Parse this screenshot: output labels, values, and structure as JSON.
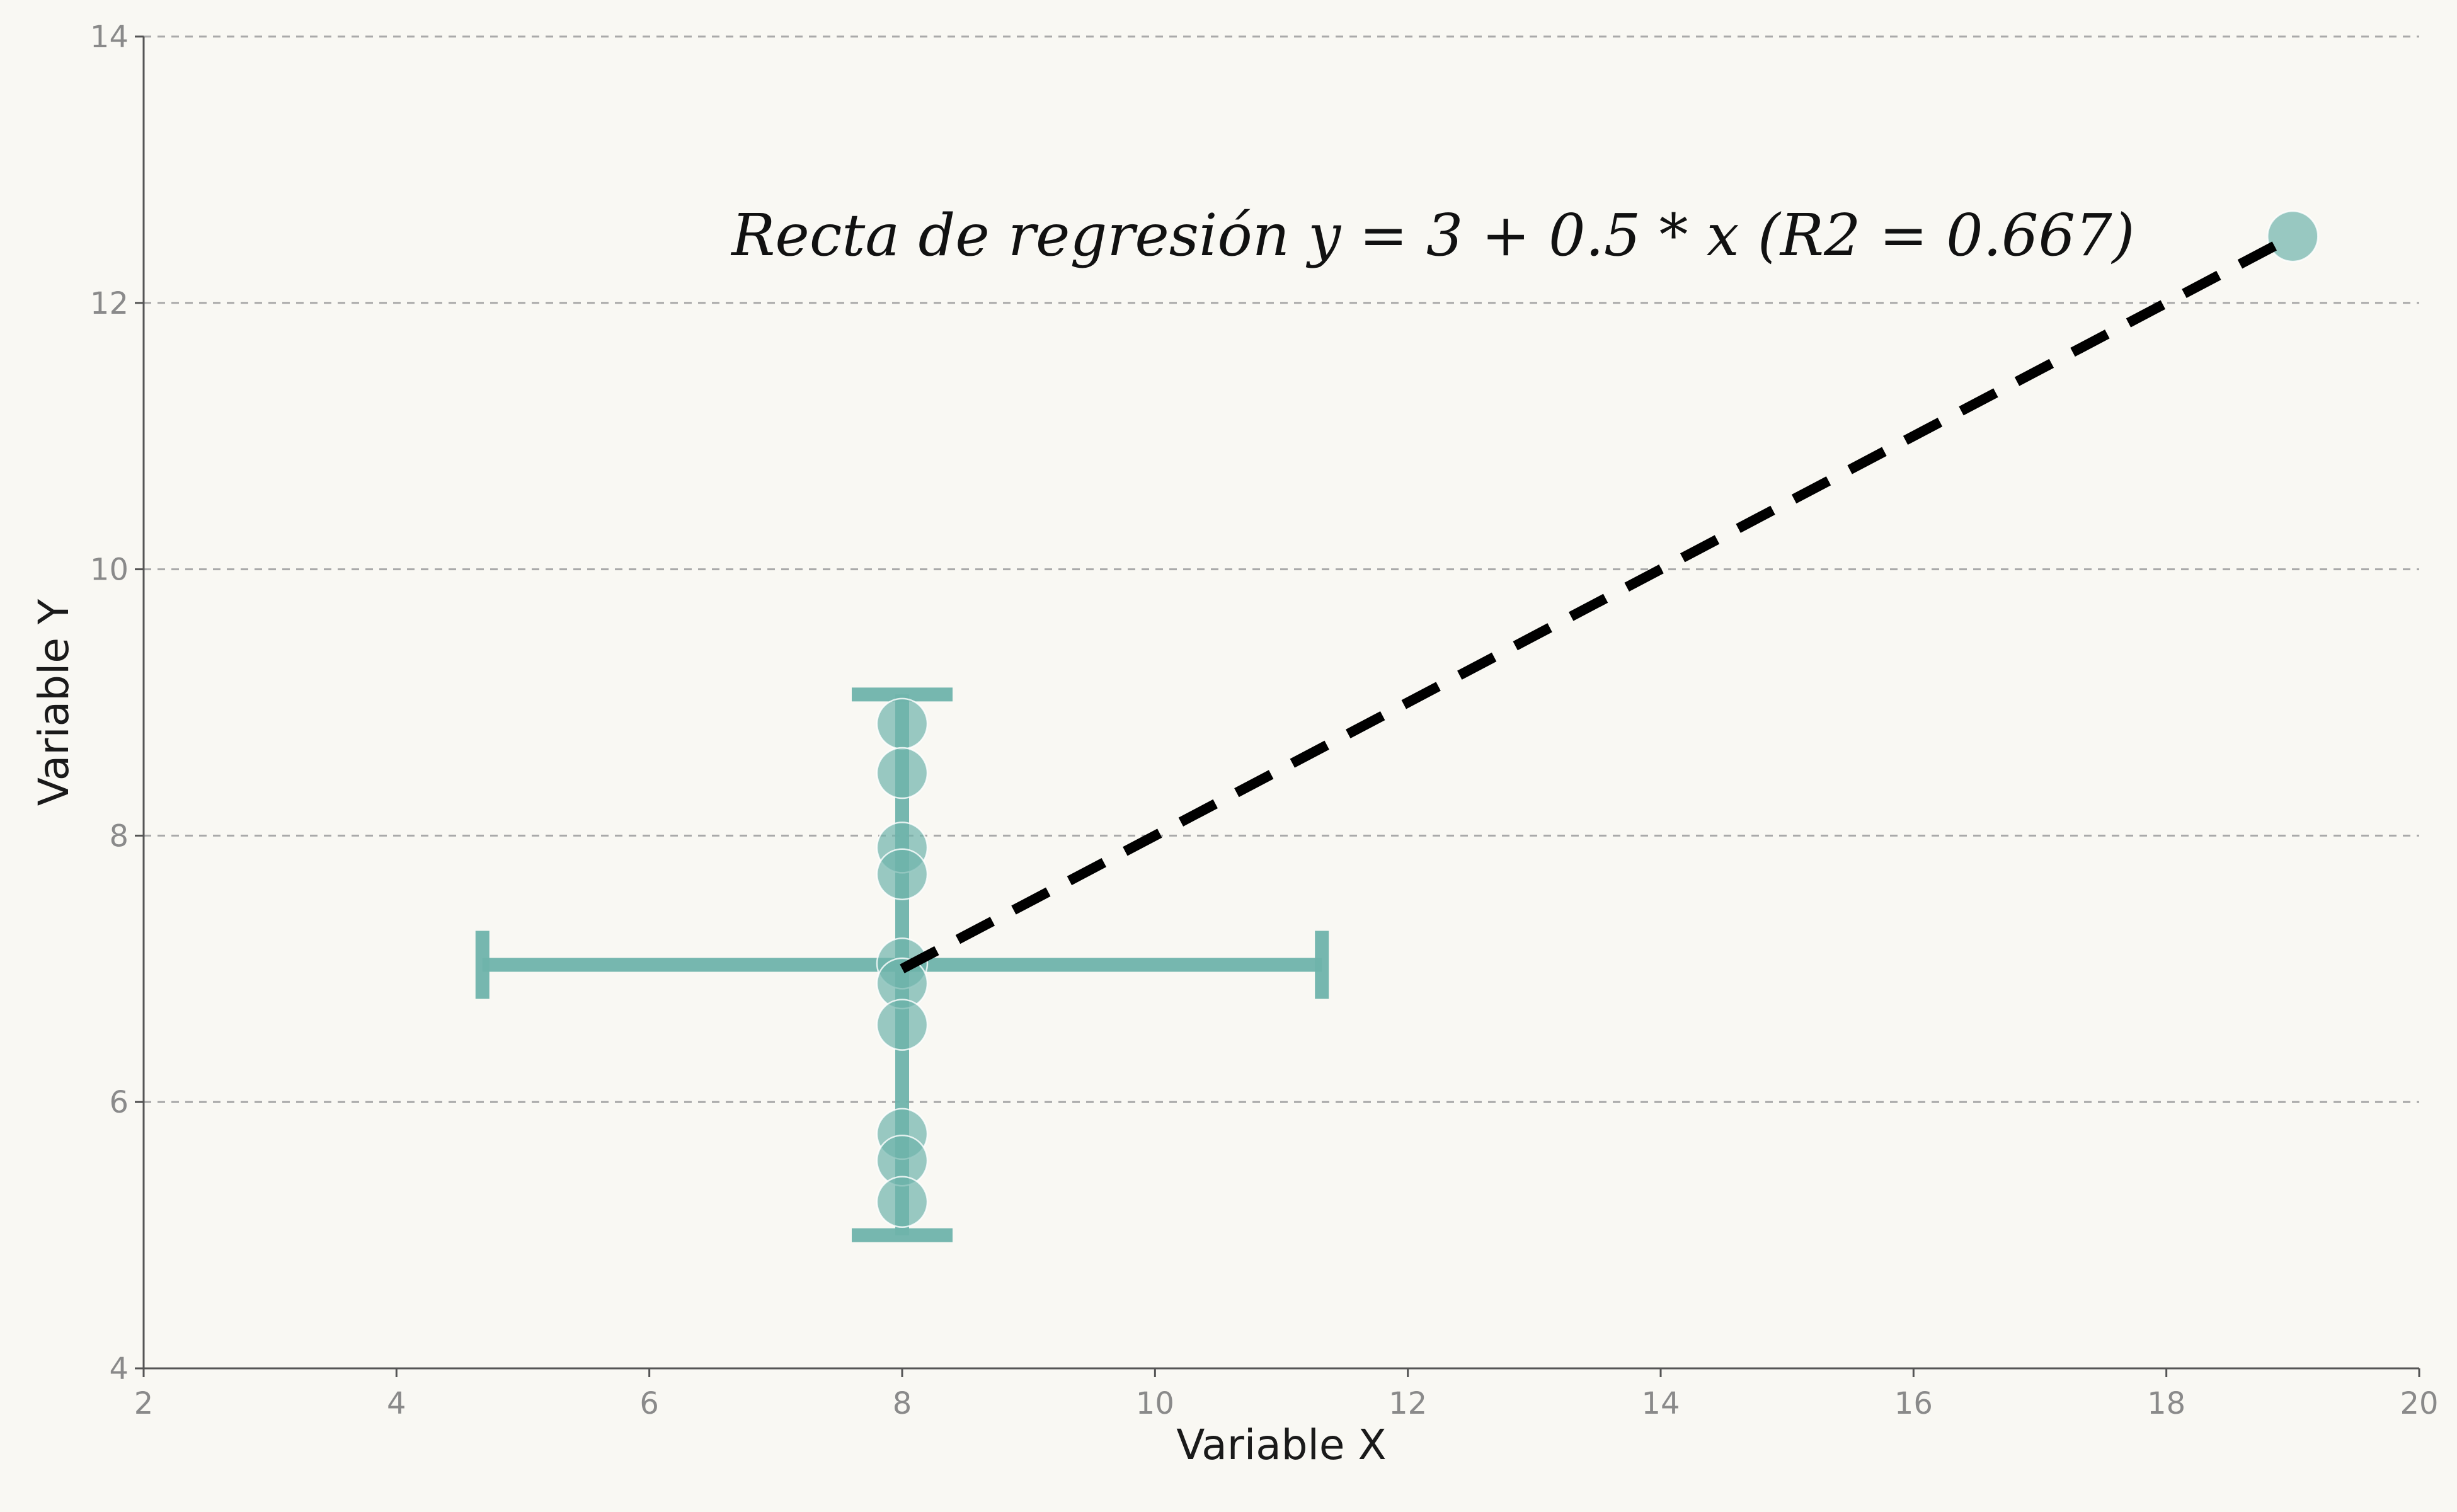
{
  "chart_data": {
    "type": "scatter",
    "title": "",
    "xlabel": "Variable X",
    "ylabel": "Variable Y",
    "xlim": [
      2,
      20
    ],
    "ylim": [
      4,
      14
    ],
    "x_ticks": [
      2,
      4,
      6,
      8,
      10,
      12,
      14,
      16,
      18,
      20
    ],
    "y_ticks": [
      4,
      6,
      8,
      10,
      12,
      14
    ],
    "grid": "horizontal dashed",
    "points": [
      {
        "x": 8,
        "y": 8.84
      },
      {
        "x": 8,
        "y": 8.47
      },
      {
        "x": 8,
        "y": 7.91
      },
      {
        "x": 8,
        "y": 7.71
      },
      {
        "x": 8,
        "y": 7.04
      },
      {
        "x": 8,
        "y": 6.89
      },
      {
        "x": 8,
        "y": 6.58
      },
      {
        "x": 8,
        "y": 5.76
      },
      {
        "x": 8,
        "y": 5.56
      },
      {
        "x": 8,
        "y": 5.25
      },
      {
        "x": 19,
        "y": 12.5
      }
    ],
    "error_bars": {
      "center": {
        "x": 8,
        "y": 7.03
      },
      "x_range": [
        4.68,
        11.32
      ],
      "y_range": [
        5.0,
        9.06
      ]
    },
    "regression_line": {
      "intercept": 3,
      "slope": 0.5,
      "x_range": [
        8,
        19
      ]
    },
    "annotation": {
      "text": "Recta de regresión y = 3 + 0.5 * x (R2 = 0.667)",
      "x": 12.2,
      "y": 12.5
    },
    "colors": {
      "background": "#f9f8f3",
      "points": "#6fb3ab",
      "error_bars": "#6fb3ab",
      "regression_line": "#000000",
      "grid": "#aaaaaa",
      "axis": "#555555"
    }
  }
}
